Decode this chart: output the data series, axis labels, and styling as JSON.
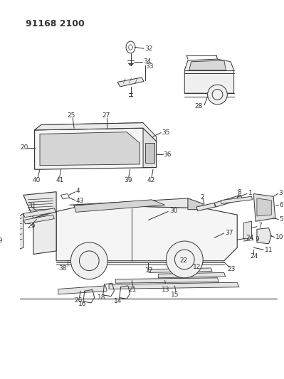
{
  "title": "91168 2100",
  "bg_color": "#ffffff",
  "line_color": "#333333",
  "title_fontsize": 9,
  "label_fontsize": 6.5,
  "fig_width": 3.99,
  "fig_height": 5.33,
  "dpi": 100
}
